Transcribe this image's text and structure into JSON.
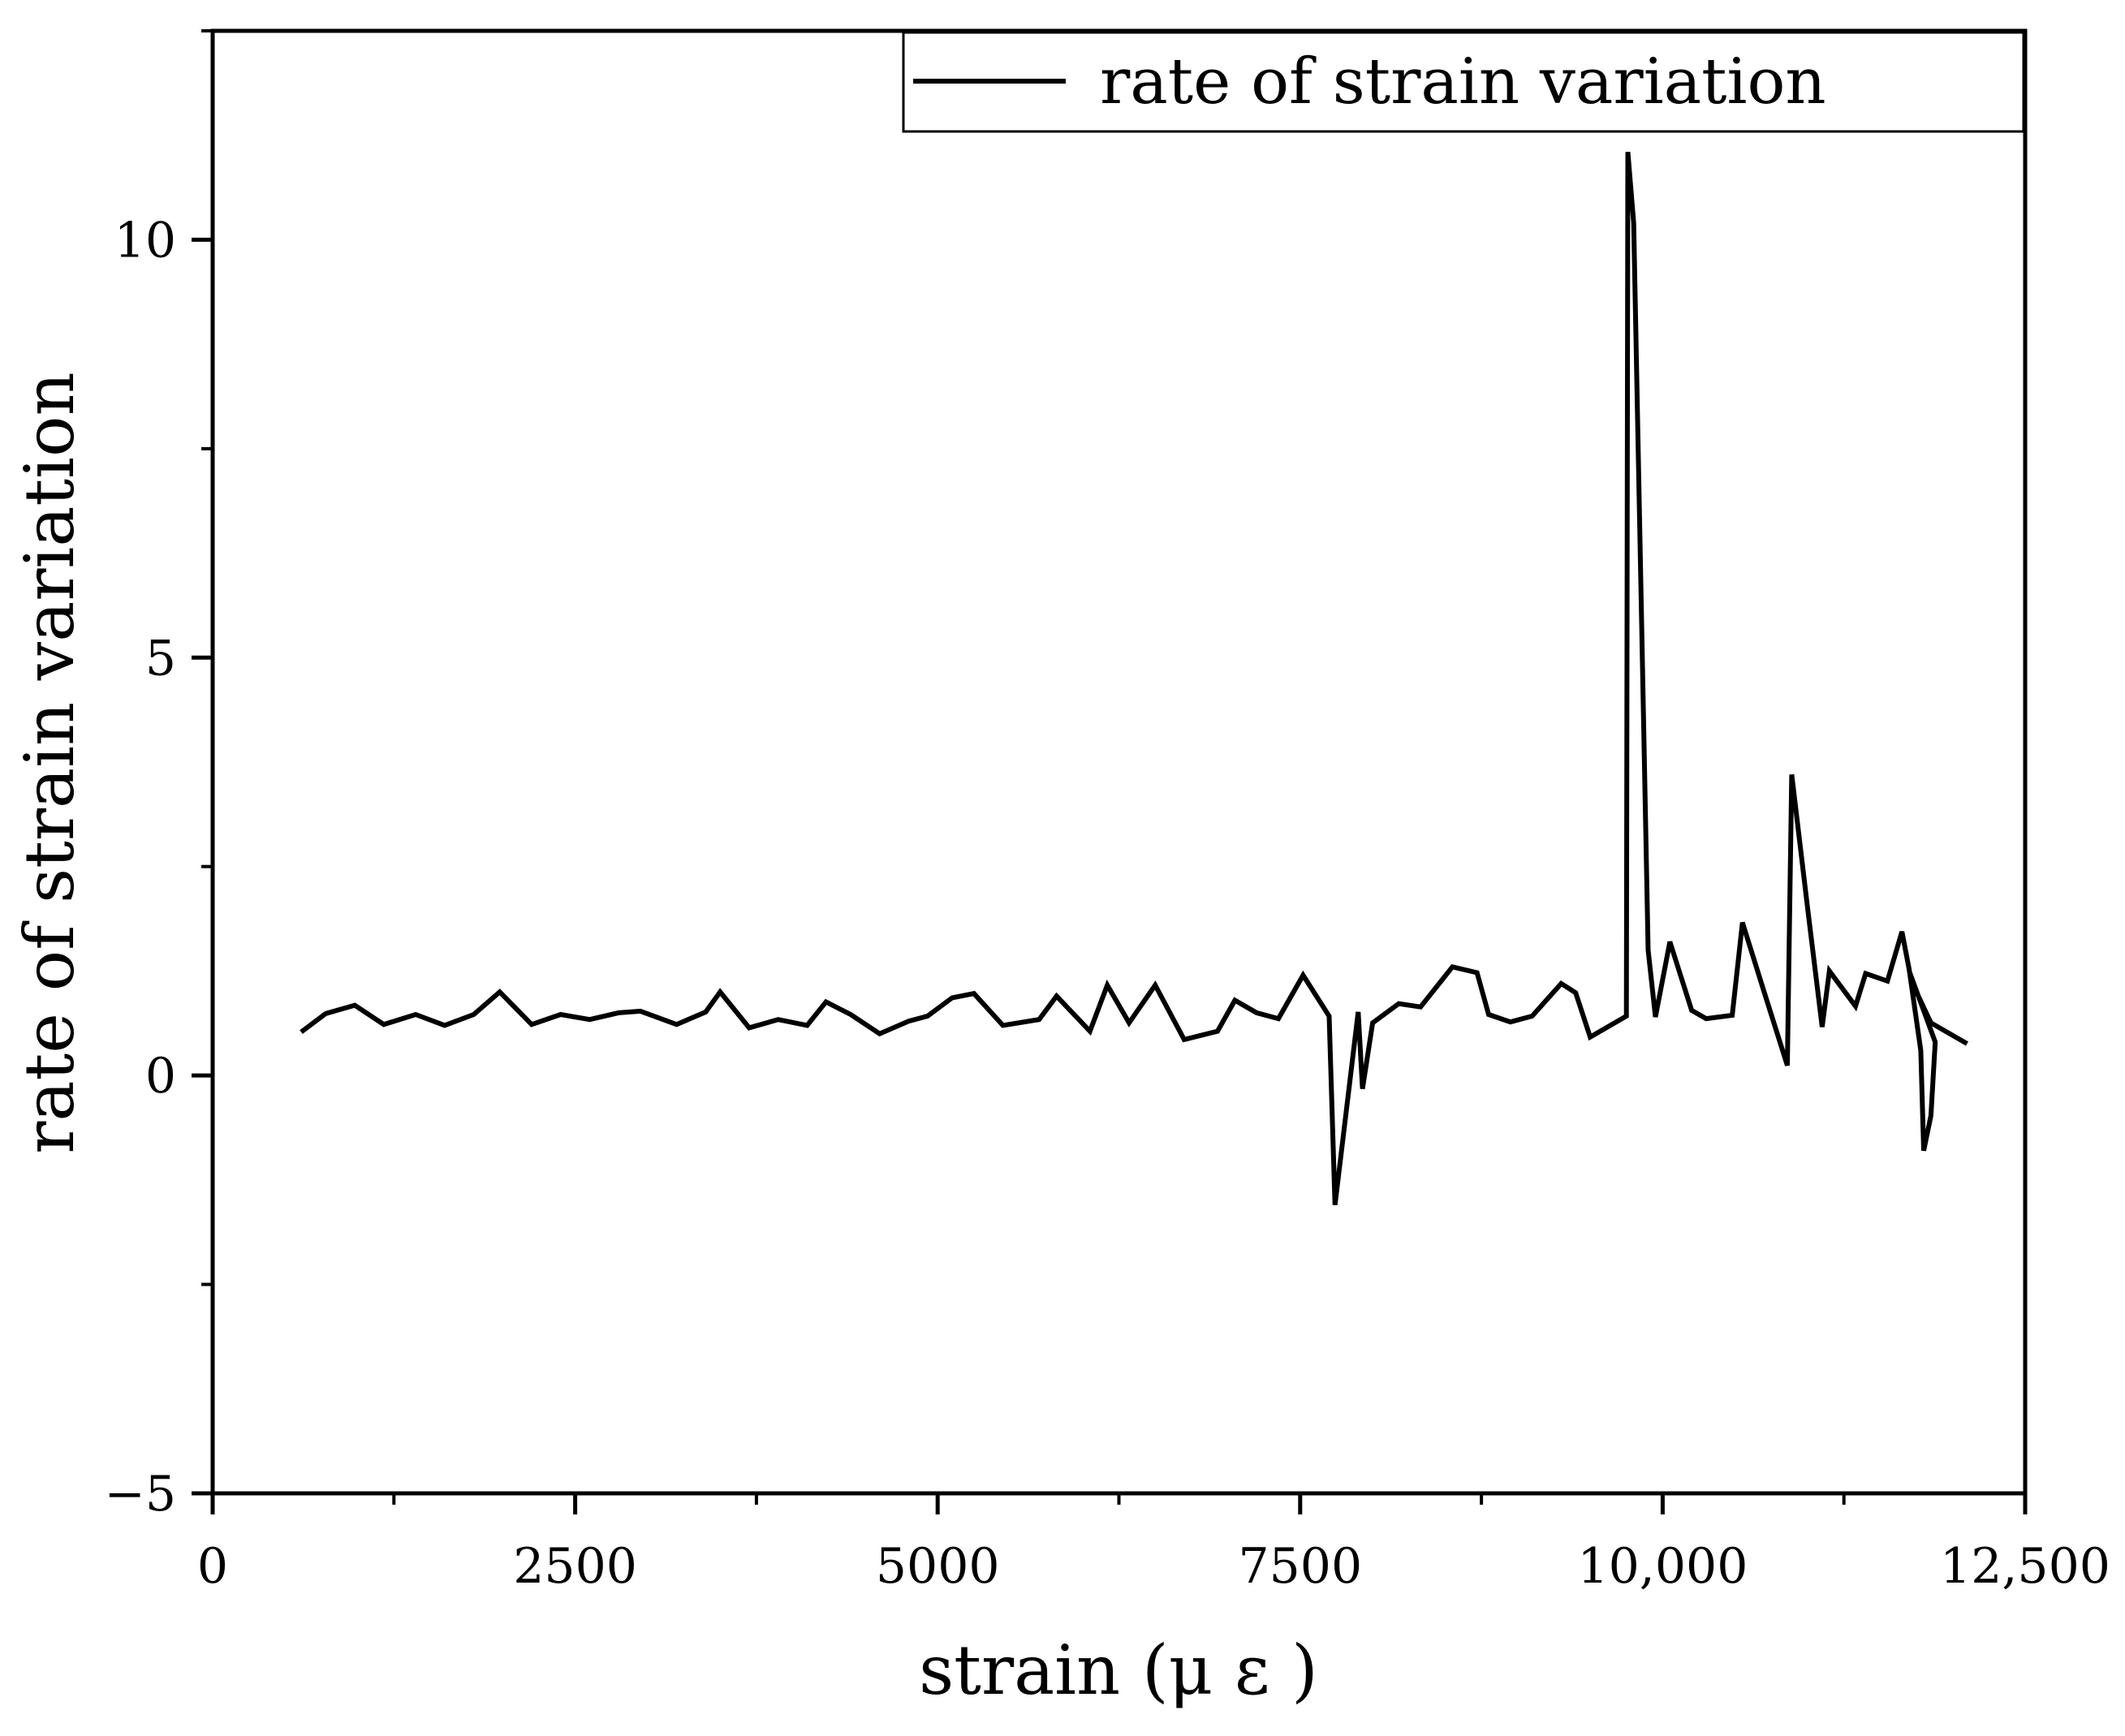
{
  "chart_data": {
    "type": "line",
    "title": "",
    "xlabel": "strain (μ ε )",
    "ylabel": "rate of strain variation",
    "xlim": [
      0,
      12500
    ],
    "ylim": [
      -5,
      12.5
    ],
    "x_ticks": [
      0,
      2500,
      5000,
      7500,
      10000,
      12500
    ],
    "x_tick_labels": [
      "0",
      "2500",
      "5000",
      "7500",
      "10,000",
      "12,500"
    ],
    "y_ticks": [
      -5,
      0,
      5,
      10
    ],
    "y_tick_labels": [
      "−5",
      "0",
      "5",
      "10"
    ],
    "grid": false,
    "legend_position": "top-right",
    "series": [
      {
        "name": "rate of strain variation",
        "color": "#000000",
        "x": [
          610,
          780,
          980,
          1180,
          1400,
          1600,
          1800,
          1980,
          2200,
          2400,
          2600,
          2800,
          2950,
          3200,
          3400,
          3500,
          3700,
          3900,
          4100,
          4230,
          4400,
          4600,
          4800,
          4930,
          5100,
          5250,
          5450,
          5700,
          5820,
          6050,
          6170,
          6320,
          6500,
          6700,
          6930,
          7050,
          7200,
          7350,
          7520,
          7700,
          7740,
          7900,
          7930,
          8000,
          8180,
          8330,
          8550,
          8720,
          8800,
          8950,
          9100,
          9300,
          9400,
          9500,
          9750,
          9760,
          9800,
          9900,
          9950,
          10050,
          10200,
          10300,
          10480,
          10550,
          10700,
          10860,
          10890,
          11000,
          11100,
          11150,
          11330,
          11400,
          11550,
          11650,
          11700,
          11780,
          11800,
          11850,
          11880,
          11700,
          11750,
          11850,
          12100
        ],
        "y": [
          0.52,
          0.74,
          0.84,
          0.61,
          0.73,
          0.6,
          0.73,
          1.0,
          0.61,
          0.73,
          0.67,
          0.75,
          0.77,
          0.61,
          0.76,
          1.0,
          0.57,
          0.67,
          0.6,
          0.88,
          0.73,
          0.5,
          0.65,
          0.71,
          0.93,
          0.98,
          0.6,
          0.67,
          0.95,
          0.53,
          1.08,
          0.63,
          1.08,
          0.43,
          0.53,
          0.9,
          0.75,
          0.68,
          1.2,
          0.71,
          -1.55,
          0.76,
          -0.16,
          0.63,
          0.86,
          0.82,
          1.3,
          1.23,
          0.73,
          0.64,
          0.71,
          1.1,
          0.99,
          0.46,
          0.71,
          11.05,
          10.2,
          1.5,
          0.7,
          1.6,
          0.78,
          0.68,
          0.72,
          1.83,
          1.0,
          0.12,
          3.6,
          2.0,
          0.58,
          1.25,
          0.83,
          1.22,
          1.13,
          1.72,
          1.27,
          0.3,
          -0.9,
          -0.48,
          0.4,
          1.25,
          1.0,
          0.63,
          0.38
        ]
      }
    ]
  }
}
